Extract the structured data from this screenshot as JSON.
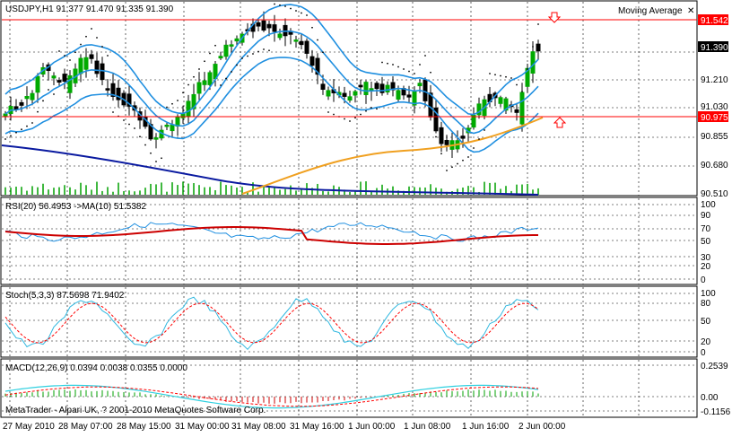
{
  "main": {
    "symbol_line": "USDJPY,H1  91.377 91.470 91.335 91.390",
    "indicator_label": "Moving Average",
    "price_ticks": [
      "91.542",
      "91.390",
      "91.210",
      "91.030",
      "90.975",
      "90.855",
      "90.680",
      "90.510"
    ],
    "current_price": "91.390",
    "level_labels": {
      "upper": "91.542",
      "lower": "90.975"
    },
    "colors": {
      "bull": "#00aa00",
      "bear": "#000000",
      "bands": "#1f8fe0",
      "ma_orange": "#f0a020",
      "ma_blue": "#0a1aa0",
      "hline": "#ff0000",
      "volume": "#00a000"
    },
    "arrow_up_icon": "up-arrow-icon",
    "arrow_down_icon": "down-arrow-icon"
  },
  "rsi": {
    "label": "RSI(20) 56.4953  ->MA(10) 51.5382",
    "ticks": [
      "100",
      "90",
      "70",
      "50",
      "30",
      "20",
      "0"
    ]
  },
  "stoch": {
    "label": "Stoch(5,3,3) 87.5698 71.9402",
    "ticks": [
      "100",
      "80",
      "50",
      "20",
      "0"
    ]
  },
  "macd": {
    "label": "MACD(12,26,9) 0.0394 0.0038 0.0355 0.0000",
    "ticks": [
      "0.2539",
      "0.00",
      "-0.1156"
    ]
  },
  "copyright": "MetaTrader - Alpari UK, ? 2001-2010 MetaQuotes Software Corp.",
  "time_axis": [
    "27 May 2010",
    "28 May 07:00",
    "28 May 15:00",
    "31 May 00:00",
    "31 May 08:00",
    "31 May 16:00",
    "1 Jun 00:00",
    "1 Jun 08:00",
    "1 Jun 16:00",
    "2 Jun 00:00"
  ]
}
